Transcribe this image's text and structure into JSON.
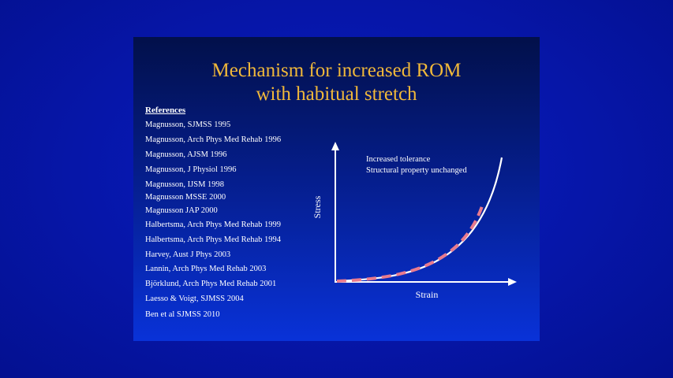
{
  "slide": {
    "title_line1": "Mechanism for increased ROM",
    "title_line2": "with habitual stretch",
    "references_heading": "References",
    "references": [
      "Magnusson, SJMSS 1995",
      "Magnusson, Arch Phys Med Rehab 1996",
      "Magnusson, AJSM 1996",
      "Magnusson, J Physiol 1996",
      "Magnusson, IJSM 1998",
      "Magnusson MSSE 2000",
      "Magnusson JAP 2000",
      "Halbertsma, Arch Phys Med Rehab 1999",
      "Halbertsma, Arch Phys Med Rehab 1994",
      "Harvey, Aust J Phys 2003",
      "Lannin, Arch Phys Med Rehab 2003",
      "Björklund, Arch Phys Med Rehab 2001",
      "Laesso & Voigt, SJMSS 2004",
      "Ben et al SJMSS 2010"
    ]
  },
  "diagram": {
    "ylabel": "Stress",
    "xlabel": "Strain",
    "annotation_line1": "Increased tolerance",
    "annotation_line2": "Structural property unchanged",
    "colors": {
      "title": "#f0b83a",
      "curve_solid": "#ffffff",
      "curve_dashed": "#e87a8e",
      "axes": "#ffffff"
    }
  }
}
